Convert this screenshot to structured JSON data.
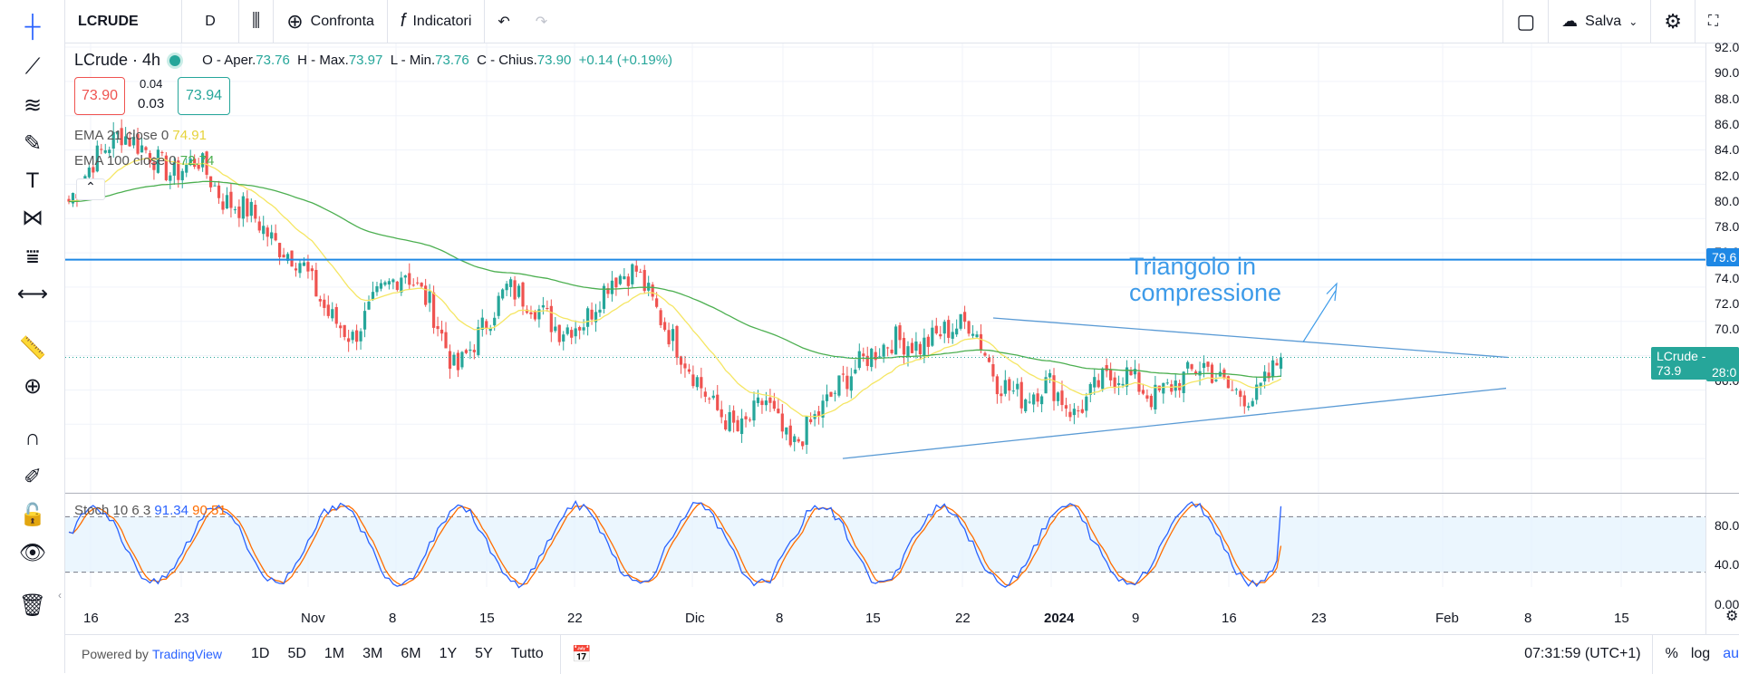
{
  "toolbar": {
    "symbol": "LCRUDE",
    "interval": "D",
    "compare_label": "Confronta",
    "indicators_label": "Indicatori",
    "save_label": "Salva"
  },
  "legend": {
    "title": "LCrude · 4h",
    "open_label": "O - Aper.",
    "open": "73.76",
    "high_label": "H - Max.",
    "high": "73.97",
    "low_label": "L - Min.",
    "low": "73.76",
    "close_label": "C - Chius.",
    "close": "73.90",
    "change": "+0.14 (+0.19%)",
    "bid": "73.90",
    "spread_top": "0.04",
    "spread": "0.03",
    "ask": "73.94",
    "ema21_label": "EMA 21 close 0",
    "ema21_value": "74.91",
    "ema100_label": "EMA 100 close 0",
    "ema100_value": "72.74",
    "stoch_label": "Stoch 10 6 3",
    "stoch_k": "91.34",
    "stoch_d": "90.51"
  },
  "annotation": {
    "line1": "Triangolo in",
    "line2": "compressione"
  },
  "price_axis": [
    "92.00",
    "90.00",
    "88.00",
    "86.00",
    "84.00",
    "82.00",
    "80.00",
    "78.00",
    "76.00",
    "74.00",
    "72.00",
    "70.00",
    "68.00",
    "66.00"
  ],
  "stoch_axis": [
    "80.00",
    "40.00",
    "0.00"
  ],
  "tags": {
    "hline": "79.6",
    "symbol_tag": "LCrude - 73.9",
    "ema_tag": "28:0"
  },
  "x_axis": [
    "16",
    "23",
    "Nov",
    "8",
    "15",
    "22",
    "Dic",
    "8",
    "15",
    "22",
    "2024",
    "9",
    "16",
    "23",
    "Feb",
    "8",
    "15"
  ],
  "bottombar": {
    "powered_by": "Powered by",
    "brand": "TradingView",
    "ranges": [
      "1D",
      "5D",
      "1M",
      "3M",
      "6M",
      "1Y",
      "5Y",
      "Tutto"
    ],
    "time": "07:31:59 (UTC+1)",
    "percent": "%",
    "log": "log",
    "auto": "au"
  },
  "colors": {
    "up": "#26a69a",
    "down": "#ef5350",
    "ema21": "#f5e663",
    "ema100": "#4caf50",
    "trend": "#5b9bd5",
    "hline": "#1e88e5",
    "stoch_k": "#2962ff",
    "stoch_d": "#ff6d00"
  },
  "chart_data": {
    "type": "candlestick",
    "interval": "4h",
    "horizontal_level": 79.6,
    "x_labels": [
      "16",
      "23",
      "Nov",
      "8",
      "15",
      "22",
      "Dic",
      "8",
      "15",
      "22",
      "2024",
      "9",
      "16",
      "23",
      "Feb",
      "8",
      "15"
    ],
    "y_range": [
      66,
      92
    ],
    "close_path": [
      83.0,
      85.5,
      87.0,
      86.0,
      84.5,
      85.5,
      83.0,
      82.5,
      80.5,
      79.5,
      76.5,
      75.0,
      77.5,
      79.0,
      77.0,
      73.0,
      75.5,
      78.0,
      77.0,
      75.5,
      76.0,
      78.5,
      79.0,
      76.0,
      73.5,
      71.0,
      69.5,
      71.5,
      68.5,
      70.5,
      72.5,
      74.0,
      75.0,
      74.5,
      75.5,
      76.0,
      72.5,
      71.5,
      72.5,
      70.5,
      72.5,
      73.0,
      71.5,
      72.5,
      73.5,
      72.0,
      71.5,
      73.9
    ],
    "stoch_range": [
      0,
      100
    ],
    "stoch_levels": [
      80,
      20
    ]
  }
}
